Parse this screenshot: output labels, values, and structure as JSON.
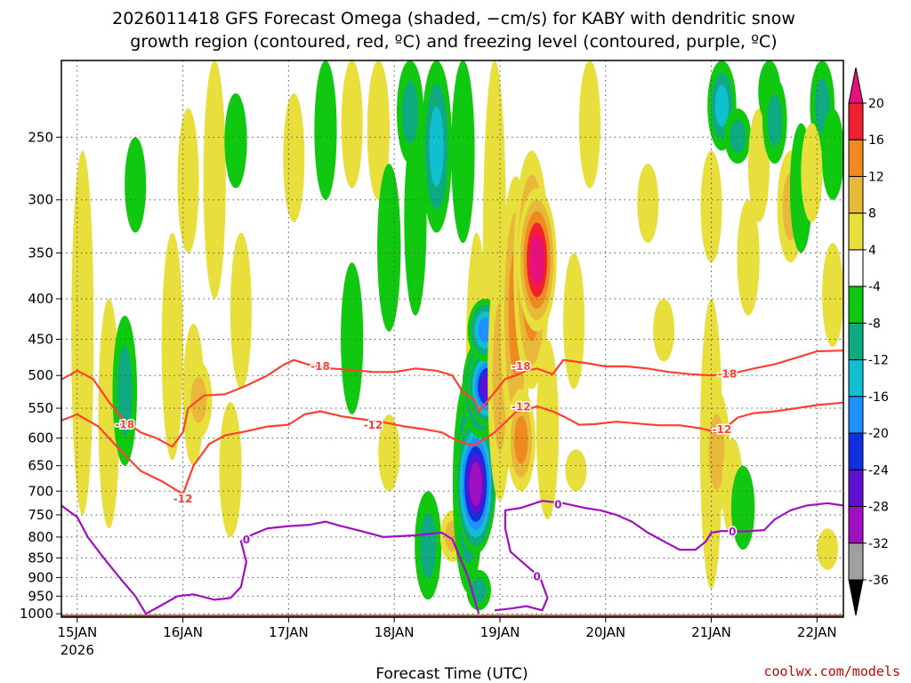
{
  "chart_data": {
    "type": "heatmap",
    "title_lines": [
      "2026011418 GFS Forecast Omega (shaded, −cm/s) for KABY with dendritic snow",
      "growth region (contoured, red, ºC) and freezing level (contoured, purple, ºC)"
    ],
    "xlabel": "Forecast Time (UTC)",
    "ylabel": "",
    "credit": "coolwx.com/models",
    "x_ticks": [
      {
        "label": "15JAN",
        "sublabel": "2026",
        "day": 0
      },
      {
        "label": "16JAN",
        "day": 1
      },
      {
        "label": "17JAN",
        "day": 2
      },
      {
        "label": "18JAN",
        "day": 3
      },
      {
        "label": "19JAN",
        "day": 4
      },
      {
        "label": "20JAN",
        "day": 5
      },
      {
        "label": "21JAN",
        "day": 6
      },
      {
        "label": "22JAN",
        "day": 7
      }
    ],
    "x_range_days": [
      -0.15,
      7.25
    ],
    "y_axis": {
      "scale": "log-pressure",
      "range_hPa": [
        1010,
        200
      ],
      "inverted": true
    },
    "y_ticks": [
      250,
      300,
      350,
      400,
      450,
      500,
      550,
      600,
      650,
      700,
      750,
      800,
      850,
      900,
      950,
      1000
    ],
    "colorbar": {
      "ticks": [
        20,
        16,
        12,
        8,
        4,
        -4,
        -8,
        -12,
        -16,
        -20,
        -24,
        -28,
        -32,
        -36
      ],
      "bins": [
        {
          "from": 20,
          "color": "#e8107f"
        },
        {
          "from": 16,
          "color": "#f02030"
        },
        {
          "from": 12,
          "color": "#ee8a20"
        },
        {
          "from": 8,
          "color": "#e8b83a"
        },
        {
          "from": 4,
          "color": "#e8df3c"
        },
        {
          "from": -4,
          "color": "#ffffff"
        },
        {
          "from": -8,
          "color": "#10c810"
        },
        {
          "from": -12,
          "color": "#10aa80"
        },
        {
          "from": -16,
          "color": "#10c0d0"
        },
        {
          "from": -20,
          "color": "#1e90ff"
        },
        {
          "from": -24,
          "color": "#1030e0"
        },
        {
          "from": -28,
          "color": "#6010d0"
        },
        {
          "from": -32,
          "color": "#a010c0"
        },
        {
          "from": -36,
          "color": "#a0a0a0"
        },
        {
          "from": -99,
          "color": "#000000"
        }
      ]
    },
    "ground_color": "#a0522d",
    "omega_features": [
      {
        "day": 0.05,
        "p_top": 260,
        "p_bot": 750,
        "value": 6
      },
      {
        "day": 0.3,
        "p_top": 400,
        "p_bot": 780,
        "value": 5
      },
      {
        "day": 0.45,
        "p_top": 420,
        "p_bot": 650,
        "value": -8
      },
      {
        "day": 0.55,
        "p_top": 250,
        "p_bot": 330,
        "value": -5
      },
      {
        "day": 0.9,
        "p_top": 330,
        "p_bot": 640,
        "value": 5
      },
      {
        "day": 1.05,
        "p_top": 230,
        "p_bot": 350,
        "value": 5
      },
      {
        "day": 1.1,
        "p_top": 430,
        "p_bot": 650,
        "value": 5
      },
      {
        "day": 1.15,
        "p_top": 480,
        "p_bot": 600,
        "value": 10
      },
      {
        "day": 1.3,
        "p_top": 200,
        "p_bot": 400,
        "value": 6
      },
      {
        "day": 1.55,
        "p_top": 330,
        "p_bot": 520,
        "value": 5
      },
      {
        "day": 1.45,
        "p_top": 540,
        "p_bot": 800,
        "value": 6
      },
      {
        "day": 1.5,
        "p_top": 220,
        "p_bot": 290,
        "value": -6
      },
      {
        "day": 2.05,
        "p_top": 220,
        "p_bot": 320,
        "value": 5
      },
      {
        "day": 2.35,
        "p_top": 200,
        "p_bot": 300,
        "value": -6
      },
      {
        "day": 2.6,
        "p_top": 200,
        "p_bot": 290,
        "value": 5
      },
      {
        "day": 2.85,
        "p_top": 200,
        "p_bot": 300,
        "value": 6
      },
      {
        "day": 2.6,
        "p_top": 360,
        "p_bot": 560,
        "value": -6
      },
      {
        "day": 2.95,
        "p_top": 270,
        "p_bot": 440,
        "value": -7
      },
      {
        "day": 3.2,
        "p_top": 240,
        "p_bot": 420,
        "value": -6
      },
      {
        "day": 3.15,
        "p_top": 200,
        "p_bot": 270,
        "value": -10
      },
      {
        "day": 3.4,
        "p_top": 200,
        "p_bot": 330,
        "value": -14
      },
      {
        "day": 3.65,
        "p_top": 200,
        "p_bot": 340,
        "value": -7
      },
      {
        "day": 3.78,
        "p_top": 330,
        "p_bot": 680,
        "value": 5
      },
      {
        "day": 3.95,
        "p_top": 200,
        "p_bot": 600,
        "value": 7
      },
      {
        "day": 3.32,
        "p_top": 700,
        "p_bot": 960,
        "value": -10
      },
      {
        "day": 3.55,
        "p_top": 740,
        "p_bot": 860,
        "value": 8
      },
      {
        "day": 3.7,
        "p_top": 500,
        "p_bot": 940,
        "value": -14
      },
      {
        "day": 3.77,
        "p_top": 560,
        "p_bot": 840,
        "value": -30
      },
      {
        "day": 3.82,
        "p_top": 450,
        "p_bot": 600,
        "value": -20
      },
      {
        "day": 3.88,
        "p_top": 460,
        "p_bot": 580,
        "value": -26
      },
      {
        "day": 3.86,
        "p_top": 400,
        "p_bot": 480,
        "value": -18
      },
      {
        "day": 4.0,
        "p_top": 350,
        "p_bot": 720,
        "value": 8
      },
      {
        "day": 4.15,
        "p_top": 280,
        "p_bot": 620,
        "value": 14
      },
      {
        "day": 4.3,
        "p_top": 260,
        "p_bot": 520,
        "value": 19
      },
      {
        "day": 4.35,
        "p_top": 290,
        "p_bot": 440,
        "value": 22
      },
      {
        "day": 4.45,
        "p_top": 450,
        "p_bot": 760,
        "value": 6
      },
      {
        "day": 4.2,
        "p_top": 520,
        "p_bot": 700,
        "value": 12
      },
      {
        "day": 4.7,
        "p_top": 350,
        "p_bot": 520,
        "value": 5
      },
      {
        "day": 4.85,
        "p_top": 200,
        "p_bot": 290,
        "value": 5
      },
      {
        "day": 5.4,
        "p_top": 270,
        "p_bot": 340,
        "value": 5
      },
      {
        "day": 5.55,
        "p_top": 400,
        "p_bot": 480,
        "value": 5
      },
      {
        "day": 6.1,
        "p_top": 200,
        "p_bot": 260,
        "value": -12
      },
      {
        "day": 6.0,
        "p_top": 260,
        "p_bot": 360,
        "value": 5
      },
      {
        "day": 6.25,
        "p_top": 230,
        "p_bot": 270,
        "value": -10
      },
      {
        "day": 6.35,
        "p_top": 300,
        "p_bot": 420,
        "value": 6
      },
      {
        "day": 6.45,
        "p_top": 230,
        "p_bot": 320,
        "value": 5
      },
      {
        "day": 6.55,
        "p_top": 200,
        "p_bot": 240,
        "value": -6
      },
      {
        "day": 6.6,
        "p_top": 210,
        "p_bot": 270,
        "value": -8
      },
      {
        "day": 6.75,
        "p_top": 260,
        "p_bot": 360,
        "value": 10
      },
      {
        "day": 6.85,
        "p_top": 240,
        "p_bot": 350,
        "value": -6
      },
      {
        "day": 7.05,
        "p_top": 200,
        "p_bot": 260,
        "value": -8
      },
      {
        "day": 7.15,
        "p_top": 230,
        "p_bot": 300,
        "value": -6
      },
      {
        "day": 6.95,
        "p_top": 240,
        "p_bot": 320,
        "value": 5
      },
      {
        "day": 7.15,
        "p_top": 340,
        "p_bot": 460,
        "value": 5
      },
      {
        "day": 6.0,
        "p_top": 400,
        "p_bot": 930,
        "value": 6
      },
      {
        "day": 6.05,
        "p_top": 520,
        "p_bot": 750,
        "value": 10
      },
      {
        "day": 6.2,
        "p_top": 600,
        "p_bot": 800,
        "value": 5
      },
      {
        "day": 6.3,
        "p_top": 650,
        "p_bot": 830,
        "value": -7
      },
      {
        "day": 7.1,
        "p_top": 780,
        "p_bot": 880,
        "value": 5
      },
      {
        "day": 4.72,
        "p_top": 620,
        "p_bot": 700,
        "value": 5
      },
      {
        "day": 2.95,
        "p_top": 560,
        "p_bot": 700,
        "value": 5
      },
      {
        "day": 3.8,
        "p_top": 880,
        "p_bot": 990,
        "value": -8
      }
    ],
    "contours": [
      {
        "name": "isotherm -18",
        "value": -18,
        "color": "#ff4030",
        "labels": [
          {
            "text": "-18",
            "day": 0.45,
            "p": 577
          },
          {
            "text": "-18",
            "day": 2.3,
            "p": 487
          },
          {
            "text": "-18",
            "day": 4.2,
            "p": 487
          },
          {
            "text": "-18",
            "day": 6.15,
            "p": 498
          }
        ],
        "points": [
          [
            -0.15,
            506
          ],
          [
            0.0,
            493
          ],
          [
            0.15,
            505
          ],
          [
            0.3,
            540
          ],
          [
            0.45,
            571
          ],
          [
            0.6,
            590
          ],
          [
            0.75,
            600
          ],
          [
            0.9,
            615
          ],
          [
            1.0,
            590
          ],
          [
            1.05,
            550
          ],
          [
            1.2,
            530
          ],
          [
            1.4,
            528
          ],
          [
            1.6,
            515
          ],
          [
            1.8,
            500
          ],
          [
            1.95,
            485
          ],
          [
            2.05,
            478
          ],
          [
            2.2,
            485
          ],
          [
            2.4,
            490
          ],
          [
            2.6,
            492
          ],
          [
            2.8,
            495
          ],
          [
            3.0,
            495
          ],
          [
            3.2,
            490
          ],
          [
            3.4,
            493
          ],
          [
            3.55,
            500
          ],
          [
            3.65,
            525
          ],
          [
            3.75,
            535
          ],
          [
            3.8,
            555
          ],
          [
            3.85,
            545
          ],
          [
            3.95,
            525
          ],
          [
            4.05,
            505
          ],
          [
            4.15,
            500
          ],
          [
            4.25,
            493
          ],
          [
            4.35,
            490
          ],
          [
            4.5,
            498
          ],
          [
            4.6,
            478
          ],
          [
            4.8,
            482
          ],
          [
            5.0,
            487
          ],
          [
            5.2,
            487
          ],
          [
            5.4,
            490
          ],
          [
            5.6,
            495
          ],
          [
            5.8,
            498
          ],
          [
            6.0,
            500
          ],
          [
            6.2,
            497
          ],
          [
            6.4,
            490
          ],
          [
            6.6,
            484
          ],
          [
            6.8,
            475
          ],
          [
            7.0,
            466
          ],
          [
            7.25,
            465
          ]
        ]
      },
      {
        "name": "isotherm -12",
        "value": -12,
        "color": "#ff4030",
        "labels": [
          {
            "text": "-12",
            "day": 1.0,
            "p": 716
          },
          {
            "text": "-12",
            "day": 2.8,
            "p": 578
          },
          {
            "text": "-12",
            "day": 4.2,
            "p": 548
          },
          {
            "text": "-12",
            "day": 6.1,
            "p": 585
          }
        ],
        "points": [
          [
            -0.15,
            570
          ],
          [
            0.0,
            560
          ],
          [
            0.2,
            580
          ],
          [
            0.4,
            620
          ],
          [
            0.6,
            660
          ],
          [
            0.8,
            680
          ],
          [
            1.0,
            706
          ],
          [
            1.1,
            650
          ],
          [
            1.25,
            610
          ],
          [
            1.4,
            595
          ],
          [
            1.6,
            588
          ],
          [
            1.8,
            580
          ],
          [
            2.0,
            577
          ],
          [
            2.15,
            560
          ],
          [
            2.3,
            555
          ],
          [
            2.5,
            563
          ],
          [
            2.7,
            568
          ],
          [
            2.9,
            573
          ],
          [
            3.1,
            580
          ],
          [
            3.3,
            585
          ],
          [
            3.45,
            590
          ],
          [
            3.55,
            600
          ],
          [
            3.65,
            608
          ],
          [
            3.75,
            613
          ],
          [
            3.85,
            602
          ],
          [
            3.95,
            590
          ],
          [
            4.05,
            573
          ],
          [
            4.15,
            556
          ],
          [
            4.25,
            553
          ],
          [
            4.35,
            547
          ],
          [
            4.5,
            555
          ],
          [
            4.6,
            563
          ],
          [
            4.75,
            577
          ],
          [
            4.9,
            576
          ],
          [
            5.1,
            572
          ],
          [
            5.3,
            575
          ],
          [
            5.5,
            578
          ],
          [
            5.7,
            578
          ],
          [
            5.9,
            583
          ],
          [
            6.05,
            590
          ],
          [
            6.15,
            580
          ],
          [
            6.25,
            565
          ],
          [
            6.4,
            558
          ],
          [
            6.6,
            555
          ],
          [
            6.8,
            550
          ],
          [
            7.0,
            545
          ],
          [
            7.25,
            541
          ]
        ]
      },
      {
        "name": "freezing level west",
        "value": 0,
        "color": "#a010c0",
        "labels": [
          {
            "text": "0",
            "day": 1.6,
            "p": 806
          }
        ],
        "points": [
          [
            -0.15,
            730
          ],
          [
            0.0,
            755
          ],
          [
            0.1,
            800
          ],
          [
            0.25,
            850
          ],
          [
            0.4,
            900
          ],
          [
            0.55,
            950
          ],
          [
            0.65,
            1000
          ],
          [
            0.8,
            975
          ],
          [
            0.95,
            950
          ],
          [
            1.1,
            945
          ],
          [
            1.3,
            960
          ],
          [
            1.45,
            955
          ],
          [
            1.55,
            925
          ],
          [
            1.6,
            860
          ],
          [
            1.55,
            810
          ],
          [
            1.65,
            795
          ],
          [
            1.8,
            780
          ],
          [
            2.0,
            775
          ],
          [
            2.2,
            772
          ],
          [
            2.35,
            765
          ],
          [
            2.5,
            775
          ],
          [
            2.7,
            787
          ],
          [
            2.9,
            800
          ],
          [
            3.05,
            798
          ],
          [
            3.2,
            796
          ],
          [
            3.35,
            792
          ],
          [
            3.45,
            790
          ],
          [
            3.55,
            805
          ],
          [
            3.7,
            900
          ],
          [
            3.8,
            1000
          ]
        ]
      },
      {
        "name": "freezing level east",
        "value": 0,
        "color": "#a010c0",
        "labels": [
          {
            "text": "0",
            "day": 4.55,
            "p": 728
          },
          {
            "text": "0",
            "day": 4.35,
            "p": 898
          },
          {
            "text": "0",
            "day": 6.2,
            "p": 788
          }
        ],
        "points": [
          [
            3.95,
            990
          ],
          [
            4.1,
            985
          ],
          [
            4.25,
            978
          ],
          [
            4.4,
            990
          ],
          [
            4.45,
            955
          ],
          [
            4.38,
            900
          ],
          [
            4.1,
            835
          ],
          [
            4.05,
            780
          ],
          [
            4.05,
            740
          ],
          [
            4.2,
            735
          ],
          [
            4.4,
            720
          ],
          [
            4.6,
            725
          ],
          [
            4.8,
            735
          ],
          [
            4.95,
            740
          ],
          [
            5.1,
            750
          ],
          [
            5.25,
            765
          ],
          [
            5.4,
            790
          ],
          [
            5.55,
            810
          ],
          [
            5.7,
            830
          ],
          [
            5.85,
            830
          ],
          [
            5.95,
            810
          ],
          [
            6.0,
            790
          ],
          [
            6.1,
            786
          ],
          [
            6.3,
            787
          ],
          [
            6.5,
            784
          ],
          [
            6.6,
            760
          ],
          [
            6.75,
            740
          ],
          [
            6.9,
            730
          ],
          [
            7.1,
            725
          ],
          [
            7.25,
            730
          ]
        ]
      }
    ]
  }
}
